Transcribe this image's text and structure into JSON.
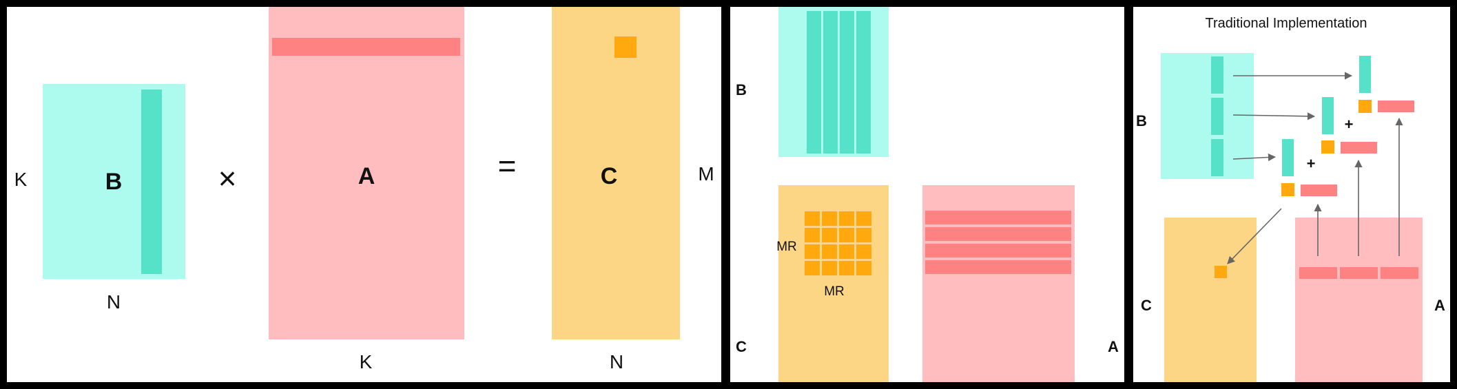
{
  "panel1": {
    "matrix_b_label": "B",
    "matrix_a_label": "A",
    "matrix_c_label": "C",
    "b_row_dim": "K",
    "b_col_dim": "N",
    "a_col_dim": "K",
    "c_col_dim": "N",
    "c_row_dim": "M",
    "times_symbol": "×",
    "equals_symbol": "="
  },
  "panel2": {
    "matrix_b_label": "B",
    "matrix_c_label": "C",
    "matrix_a_label": "A",
    "tile_row_label": "MR",
    "tile_col_label": "MR"
  },
  "panel3": {
    "title": "Traditional Implementation",
    "matrix_b_label": "B",
    "matrix_c_label": "C",
    "matrix_a_label": "A",
    "plus_symbol": "+"
  },
  "colors": {
    "b_light": "#adfbef",
    "b_strip": "#55e2c8",
    "a_light": "#ffbdbf",
    "a_strip": "#ff8282",
    "c_light": "#fcd684",
    "c_cell": "#ffa90e",
    "arrow": "#666666",
    "frame": "#000000",
    "panel_bg": "#ffffff"
  }
}
